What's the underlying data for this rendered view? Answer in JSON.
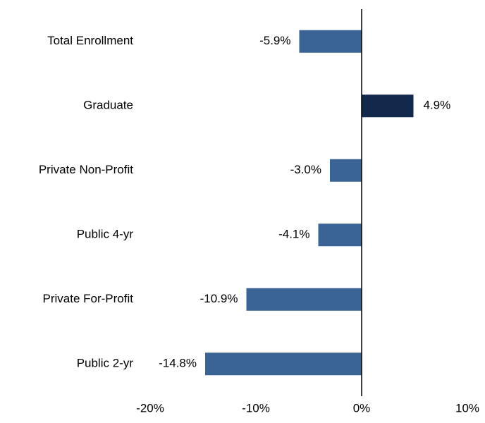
{
  "chart_data": {
    "type": "hbar",
    "categories": [
      "Total Enrollment",
      "Graduate",
      "Private Non-Profit",
      "Public 4-yr",
      "Private For-Profit",
      "Public 2-yr"
    ],
    "values": [
      -5.9,
      4.9,
      -3.0,
      -4.1,
      -10.9,
      -14.8
    ],
    "value_labels": [
      "-5.9%",
      "4.9%",
      "-3.0%",
      "-4.1%",
      "-10.9%",
      "-14.8%"
    ],
    "colors": [
      "#3a6496",
      "#13294b",
      "#3a6496",
      "#3a6496",
      "#3a6496",
      "#3a6496"
    ],
    "xlim": [
      -20,
      10
    ],
    "xticks": [
      {
        "value": -20,
        "label": "-20%"
      },
      {
        "value": -10,
        "label": "-10%"
      },
      {
        "value": 0,
        "label": "0%"
      },
      {
        "value": 10,
        "label": "10%"
      }
    ],
    "grid": false
  }
}
